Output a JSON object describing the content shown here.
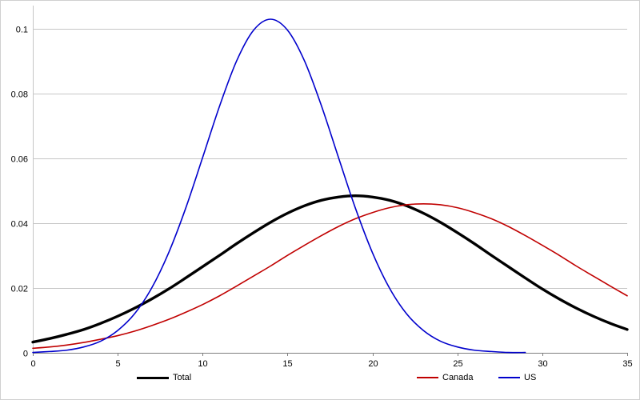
{
  "chart_data": {
    "type": "line",
    "title": "",
    "xlabel": "",
    "ylabel": "",
    "xlim": [
      0,
      35
    ],
    "ylim": [
      0,
      0.1072
    ],
    "grid": "horizontal",
    "legend_position": "bottom",
    "x_ticks": [
      {
        "value": 0,
        "label": "0"
      },
      {
        "value": 5,
        "label": "5"
      },
      {
        "value": 10,
        "label": "10"
      },
      {
        "value": 15,
        "label": "15"
      },
      {
        "value": 20,
        "label": "20"
      },
      {
        "value": 25,
        "label": "25"
      },
      {
        "value": 30,
        "label": "30"
      },
      {
        "value": 35,
        "label": "35"
      }
    ],
    "y_ticks": [
      {
        "value": 0,
        "label": "0"
      },
      {
        "value": 0.02,
        "label": "0.02"
      },
      {
        "value": 0.04,
        "label": "0.04"
      },
      {
        "value": 0.06,
        "label": "0.06"
      },
      {
        "value": 0.08,
        "label": "0.08"
      },
      {
        "value": 0.1,
        "label": "0.1"
      }
    ],
    "colors": {
      "background": "#ffffff",
      "border": "#d0d0d0",
      "gridline": "#c6c6c6",
      "axis": "#7f7f7f",
      "tick_label": "#000000",
      "legend_label": "#000000"
    },
    "series": [
      {
        "name": "Total",
        "color": "#000000",
        "line_width": 3.4,
        "x": [
          0,
          1,
          2,
          3,
          4,
          5,
          6,
          7,
          8,
          9,
          10,
          11,
          12,
          13,
          14,
          15,
          16,
          17,
          18,
          19,
          20,
          21,
          22,
          23,
          24,
          25,
          26,
          27,
          28,
          29,
          30,
          31,
          32,
          33,
          34,
          35
        ],
        "y": [
          0.0033,
          0.0044,
          0.0057,
          0.0072,
          0.0091,
          0.0113,
          0.0138,
          0.0166,
          0.0197,
          0.0231,
          0.0266,
          0.0301,
          0.0337,
          0.0371,
          0.0403,
          0.0431,
          0.0454,
          0.0471,
          0.0481,
          0.0485,
          0.0481,
          0.0471,
          0.0454,
          0.0431,
          0.0403,
          0.0371,
          0.0337,
          0.0301,
          0.0266,
          0.0231,
          0.0197,
          0.0166,
          0.0138,
          0.0113,
          0.0091,
          0.0072
        ]
      },
      {
        "name": "Canada",
        "color": "#c00000",
        "line_width": 1.6,
        "x": [
          0,
          1,
          2,
          3,
          4,
          5,
          6,
          7,
          8,
          9,
          10,
          11,
          12,
          13,
          14,
          15,
          16,
          17,
          18,
          19,
          20,
          21,
          22,
          23,
          24,
          25,
          26,
          27,
          28,
          29,
          30,
          31,
          32,
          33,
          34,
          35
        ],
        "y": [
          0.0014,
          0.0018,
          0.0024,
          0.0032,
          0.0042,
          0.0053,
          0.0067,
          0.0084,
          0.0103,
          0.0125,
          0.0149,
          0.0176,
          0.0206,
          0.0237,
          0.0268,
          0.0301,
          0.0332,
          0.0362,
          0.039,
          0.0414,
          0.0433,
          0.0448,
          0.0457,
          0.046,
          0.0457,
          0.0448,
          0.0433,
          0.0414,
          0.039,
          0.0362,
          0.0332,
          0.0301,
          0.0268,
          0.0237,
          0.0206,
          0.0176
        ]
      },
      {
        "name": "US",
        "color": "#0000cc",
        "line_width": 1.6,
        "x": [
          0,
          1,
          2,
          3,
          4,
          5,
          6,
          7,
          8,
          9,
          10,
          11,
          12,
          13,
          14,
          15,
          16,
          17,
          18,
          19,
          20,
          21,
          22,
          23,
          24,
          25,
          26,
          27,
          28,
          29
        ],
        "y": [
          0.0001,
          0.0004,
          0.0008,
          0.0018,
          0.0036,
          0.0069,
          0.0121,
          0.02,
          0.0309,
          0.0446,
          0.0603,
          0.0762,
          0.0901,
          0.0996,
          0.103,
          0.0996,
          0.0901,
          0.0762,
          0.0603,
          0.0446,
          0.0309,
          0.02,
          0.0121,
          0.0069,
          0.0036,
          0.0018,
          0.0008,
          0.0004,
          0.0001,
          0.0001
        ]
      }
    ]
  }
}
